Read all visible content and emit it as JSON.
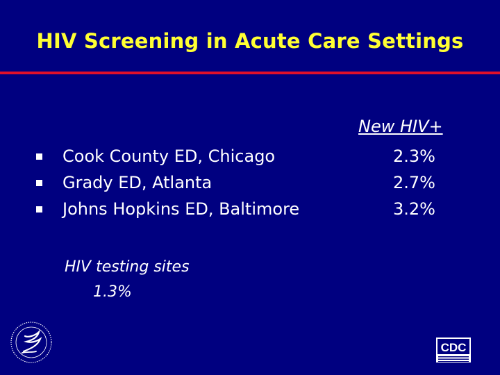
{
  "slide": {
    "title": "HIV Screening in Acute Care Settings",
    "column_header": "New HIV+",
    "bullets": [
      {
        "label": "Cook County ED, Chicago",
        "value": "2.3%"
      },
      {
        "label": "Grady ED, Atlanta",
        "value": "2.7%"
      },
      {
        "label": "Johns Hopkins ED, Baltimore",
        "value": "3.2%"
      }
    ],
    "testing_sites": {
      "label": "HIV testing sites",
      "value": "1.3%"
    }
  },
  "logos": {
    "hhs": "hhs-seal-icon",
    "cdc_text": "CDC"
  },
  "colors": {
    "background": "#000080",
    "title": "#ffff33",
    "rule": "#e0102a",
    "text": "#ffffff"
  }
}
